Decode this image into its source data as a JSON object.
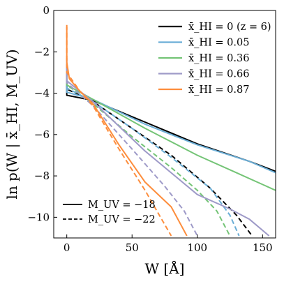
{
  "chart_data": {
    "type": "line",
    "xlabel": "W [Å]",
    "ylabel": "ln p(W | x̄_HI, M_UV)",
    "xlim": [
      -10,
      160
    ],
    "ylim": [
      -11,
      0
    ],
    "xticks": [
      0,
      50,
      100,
      150
    ],
    "yticks": [
      0,
      -2,
      -4,
      -6,
      -8,
      -10
    ],
    "xtick_labels": [
      "0",
      "50",
      "100",
      "150"
    ],
    "ytick_labels": [
      "0",
      "−2",
      "−4",
      "−6",
      "−8",
      "−10"
    ],
    "grid": false,
    "legend_position": "top-right",
    "legend": [
      {
        "label": "x̄_HI = 0 (z = 6)",
        "color": "#000000"
      },
      {
        "label": "x̄_HI = 0.05",
        "color": "#6baed6"
      },
      {
        "label": "x̄_HI = 0.36",
        "color": "#74c476"
      },
      {
        "label": "x̄_HI = 0.66",
        "color": "#9e9ac8"
      },
      {
        "label": "x̄_HI = 0.87",
        "color": "#fd8d3c"
      }
    ],
    "style_legend_position": "bottom-left",
    "style_legend": [
      {
        "label": "M_UV = −18",
        "dash": "solid"
      },
      {
        "label": "M_UV = −22",
        "dash": "dashed"
      }
    ],
    "series": [
      {
        "xHI": "0",
        "muv": "-18",
        "color": "#000000",
        "dash": "solid",
        "x": [
          0,
          0,
          20,
          60,
          100,
          140,
          160
        ],
        "y": [
          -3.65,
          -4.1,
          -4.35,
          -5.4,
          -6.45,
          -7.3,
          -7.78
        ]
      },
      {
        "xHI": "0",
        "muv": "-22",
        "color": "#000000",
        "dash": "dashed",
        "x": [
          0,
          0,
          20,
          50,
          80,
          110,
          130,
          142
        ],
        "y": [
          -3.5,
          -3.8,
          -4.4,
          -5.7,
          -7.0,
          -8.6,
          -9.9,
          -10.9
        ]
      },
      {
        "xHI": "0.05",
        "muv": "-18",
        "color": "#6baed6",
        "dash": "solid",
        "x": [
          0,
          0,
          20,
          60,
          100,
          140,
          160
        ],
        "y": [
          -3.1,
          -3.95,
          -4.3,
          -5.5,
          -6.5,
          -7.3,
          -7.85
        ]
      },
      {
        "xHI": "0.05",
        "muv": "-22",
        "color": "#6baed6",
        "dash": "dashed",
        "x": [
          0,
          0,
          20,
          50,
          80,
          110,
          125,
          132
        ],
        "y": [
          -3.3,
          -3.75,
          -4.4,
          -5.7,
          -7.1,
          -8.6,
          -9.9,
          -10.9
        ]
      },
      {
        "xHI": "0.36",
        "muv": "-18",
        "color": "#74c476",
        "dash": "solid",
        "x": [
          0,
          0,
          20,
          60,
          100,
          130,
          160
        ],
        "y": [
          -2.6,
          -3.6,
          -4.3,
          -5.7,
          -7.0,
          -7.85,
          -8.7
        ]
      },
      {
        "xHI": "0.36",
        "muv": "-22",
        "color": "#74c476",
        "dash": "dashed",
        "x": [
          0,
          0,
          20,
          50,
          80,
          100,
          115,
          125
        ],
        "y": [
          -3.0,
          -3.6,
          -4.5,
          -6.1,
          -7.6,
          -8.7,
          -9.7,
          -10.9
        ]
      },
      {
        "xHI": "0.66",
        "muv": "-18",
        "color": "#9e9ac8",
        "dash": "solid",
        "x": [
          0,
          0,
          20,
          60,
          100,
          125,
          140,
          155
        ],
        "y": [
          -2.3,
          -3.4,
          -4.4,
          -6.8,
          -8.9,
          -9.6,
          -10.1,
          -10.9
        ]
      },
      {
        "xHI": "0.66",
        "muv": "-22",
        "color": "#9e9ac8",
        "dash": "dashed",
        "x": [
          0,
          0,
          20,
          50,
          75,
          90,
          100
        ],
        "y": [
          -2.6,
          -3.5,
          -4.6,
          -6.7,
          -8.5,
          -9.7,
          -10.9
        ]
      },
      {
        "xHI": "0.87",
        "muv": "-18",
        "color": "#fd8d3c",
        "dash": "solid",
        "x": [
          0,
          0,
          2,
          10,
          20,
          40,
          60,
          80,
          92
        ],
        "y": [
          -0.8,
          -2.5,
          -3.3,
          -3.9,
          -4.5,
          -6.5,
          -8.3,
          -9.5,
          -10.9
        ]
      },
      {
        "xHI": "0.87",
        "muv": "-22",
        "color": "#fd8d3c",
        "dash": "dashed",
        "x": [
          0,
          0,
          10,
          20,
          40,
          60,
          70,
          80
        ],
        "y": [
          -0.7,
          -3.0,
          -3.9,
          -4.6,
          -6.7,
          -8.7,
          -9.8,
          -10.9
        ]
      }
    ]
  }
}
